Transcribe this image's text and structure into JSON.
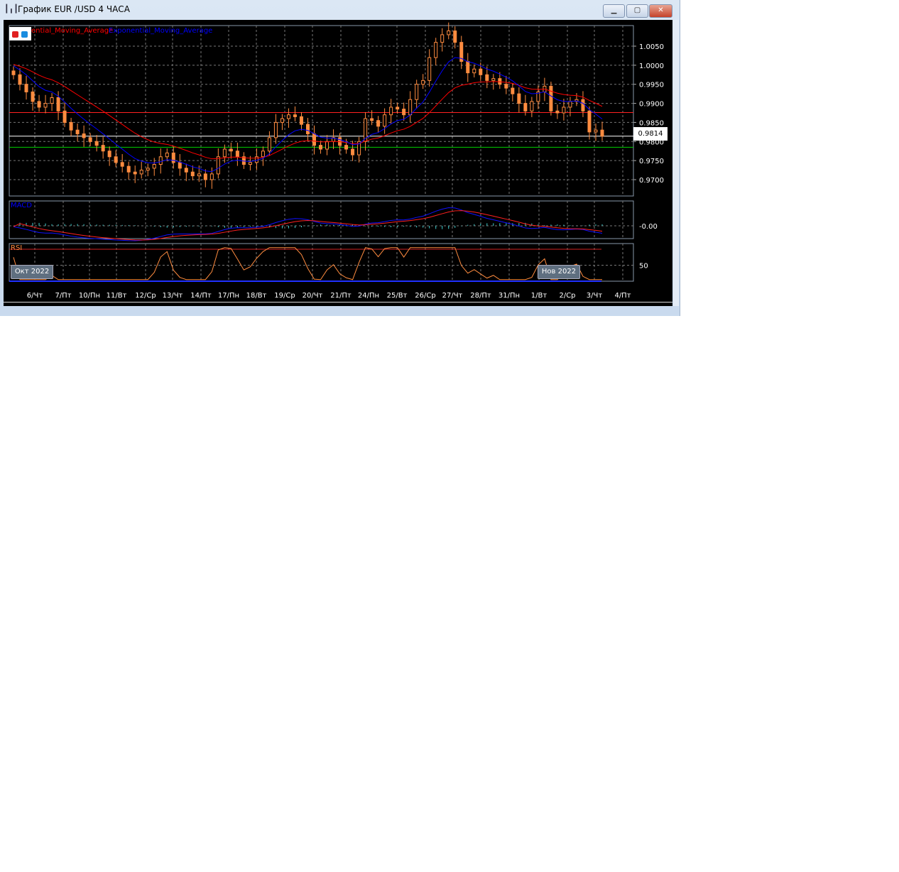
{
  "window": {
    "title": "График EUR /USD  4 ЧАСА",
    "minimize_label": "▁",
    "maximize_label": "▢",
    "close_label": "✕"
  },
  "legend": {
    "ema1_label": "ential_Moving_Average",
    "ema2_label": "Exponential_Moving_Average",
    "ema1_color": "#ff0000",
    "ema2_color": "#0000ff"
  },
  "chart_data": {
    "type": "candlestick",
    "symbol": "EUR/USD",
    "timeframe": "4 ЧАСА",
    "price_ticks": [
      "1.0050",
      "1.0000",
      "0.9950",
      "0.9900",
      "0.9850",
      "0.9800",
      "0.9750",
      "0.9700"
    ],
    "ylim": [
      0.9655,
      1.01
    ],
    "current_price": "0.9814",
    "horizontal_lines": [
      {
        "price": 0.9876,
        "color": "#ff2020"
      },
      {
        "price": 0.9814,
        "color": "#ffffff"
      },
      {
        "price": 0.9785,
        "color": "#00d000"
      }
    ],
    "candle_color": "#ff8c40",
    "closes": [
      0.9975,
      0.995,
      0.993,
      0.9905,
      0.989,
      0.99,
      0.9915,
      0.988,
      0.985,
      0.983,
      0.982,
      0.981,
      0.98,
      0.979,
      0.9775,
      0.976,
      0.9745,
      0.9735,
      0.972,
      0.9715,
      0.9725,
      0.973,
      0.974,
      0.976,
      0.977,
      0.9745,
      0.973,
      0.972,
      0.971,
      0.9715,
      0.97,
      0.9715,
      0.976,
      0.978,
      0.9775,
      0.976,
      0.974,
      0.9745,
      0.976,
      0.9775,
      0.981,
      0.985,
      0.986,
      0.987,
      0.9865,
      0.9845,
      0.982,
      0.979,
      0.978,
      0.98,
      0.981,
      0.979,
      0.978,
      0.9765,
      0.98,
      0.986,
      0.9855,
      0.984,
      0.987,
      0.989,
      0.9885,
      0.987,
      0.991,
      0.995,
      0.996,
      1.002,
      1.006,
      1.008,
      1.009,
      1.006,
      1.001,
      0.998,
      0.999,
      0.9975,
      0.996,
      0.9965,
      0.995,
      0.994,
      0.9925,
      0.99,
      0.988,
      0.9905,
      0.993,
      0.9945,
      0.988,
      0.9875,
      0.989,
      0.9905,
      0.991,
      0.988,
      0.9825,
      0.983,
      0.9814
    ],
    "x_labels": [
      "6/Чт",
      "7/Пт",
      "10/Пн",
      "11/Вт",
      "12/Ср",
      "13/Чт",
      "14/Пт",
      "17/Пн",
      "18/Вт",
      "19/Ср",
      "20/Чт",
      "21/Пт",
      "24/Пн",
      "25/Вт",
      "26/Ср",
      "27/Чт",
      "28/Пт",
      "31/Пн",
      "1/Вт",
      "2/Ср",
      "3/Чт",
      "4/Пт"
    ],
    "month_labels": [
      "Окт 2022",
      "Нов 2022"
    ],
    "macd": {
      "label": "MACD",
      "tick": "-0.00"
    },
    "rsi": {
      "label": "RSI",
      "tick": "50",
      "levels": [
        70,
        50,
        30
      ]
    }
  }
}
